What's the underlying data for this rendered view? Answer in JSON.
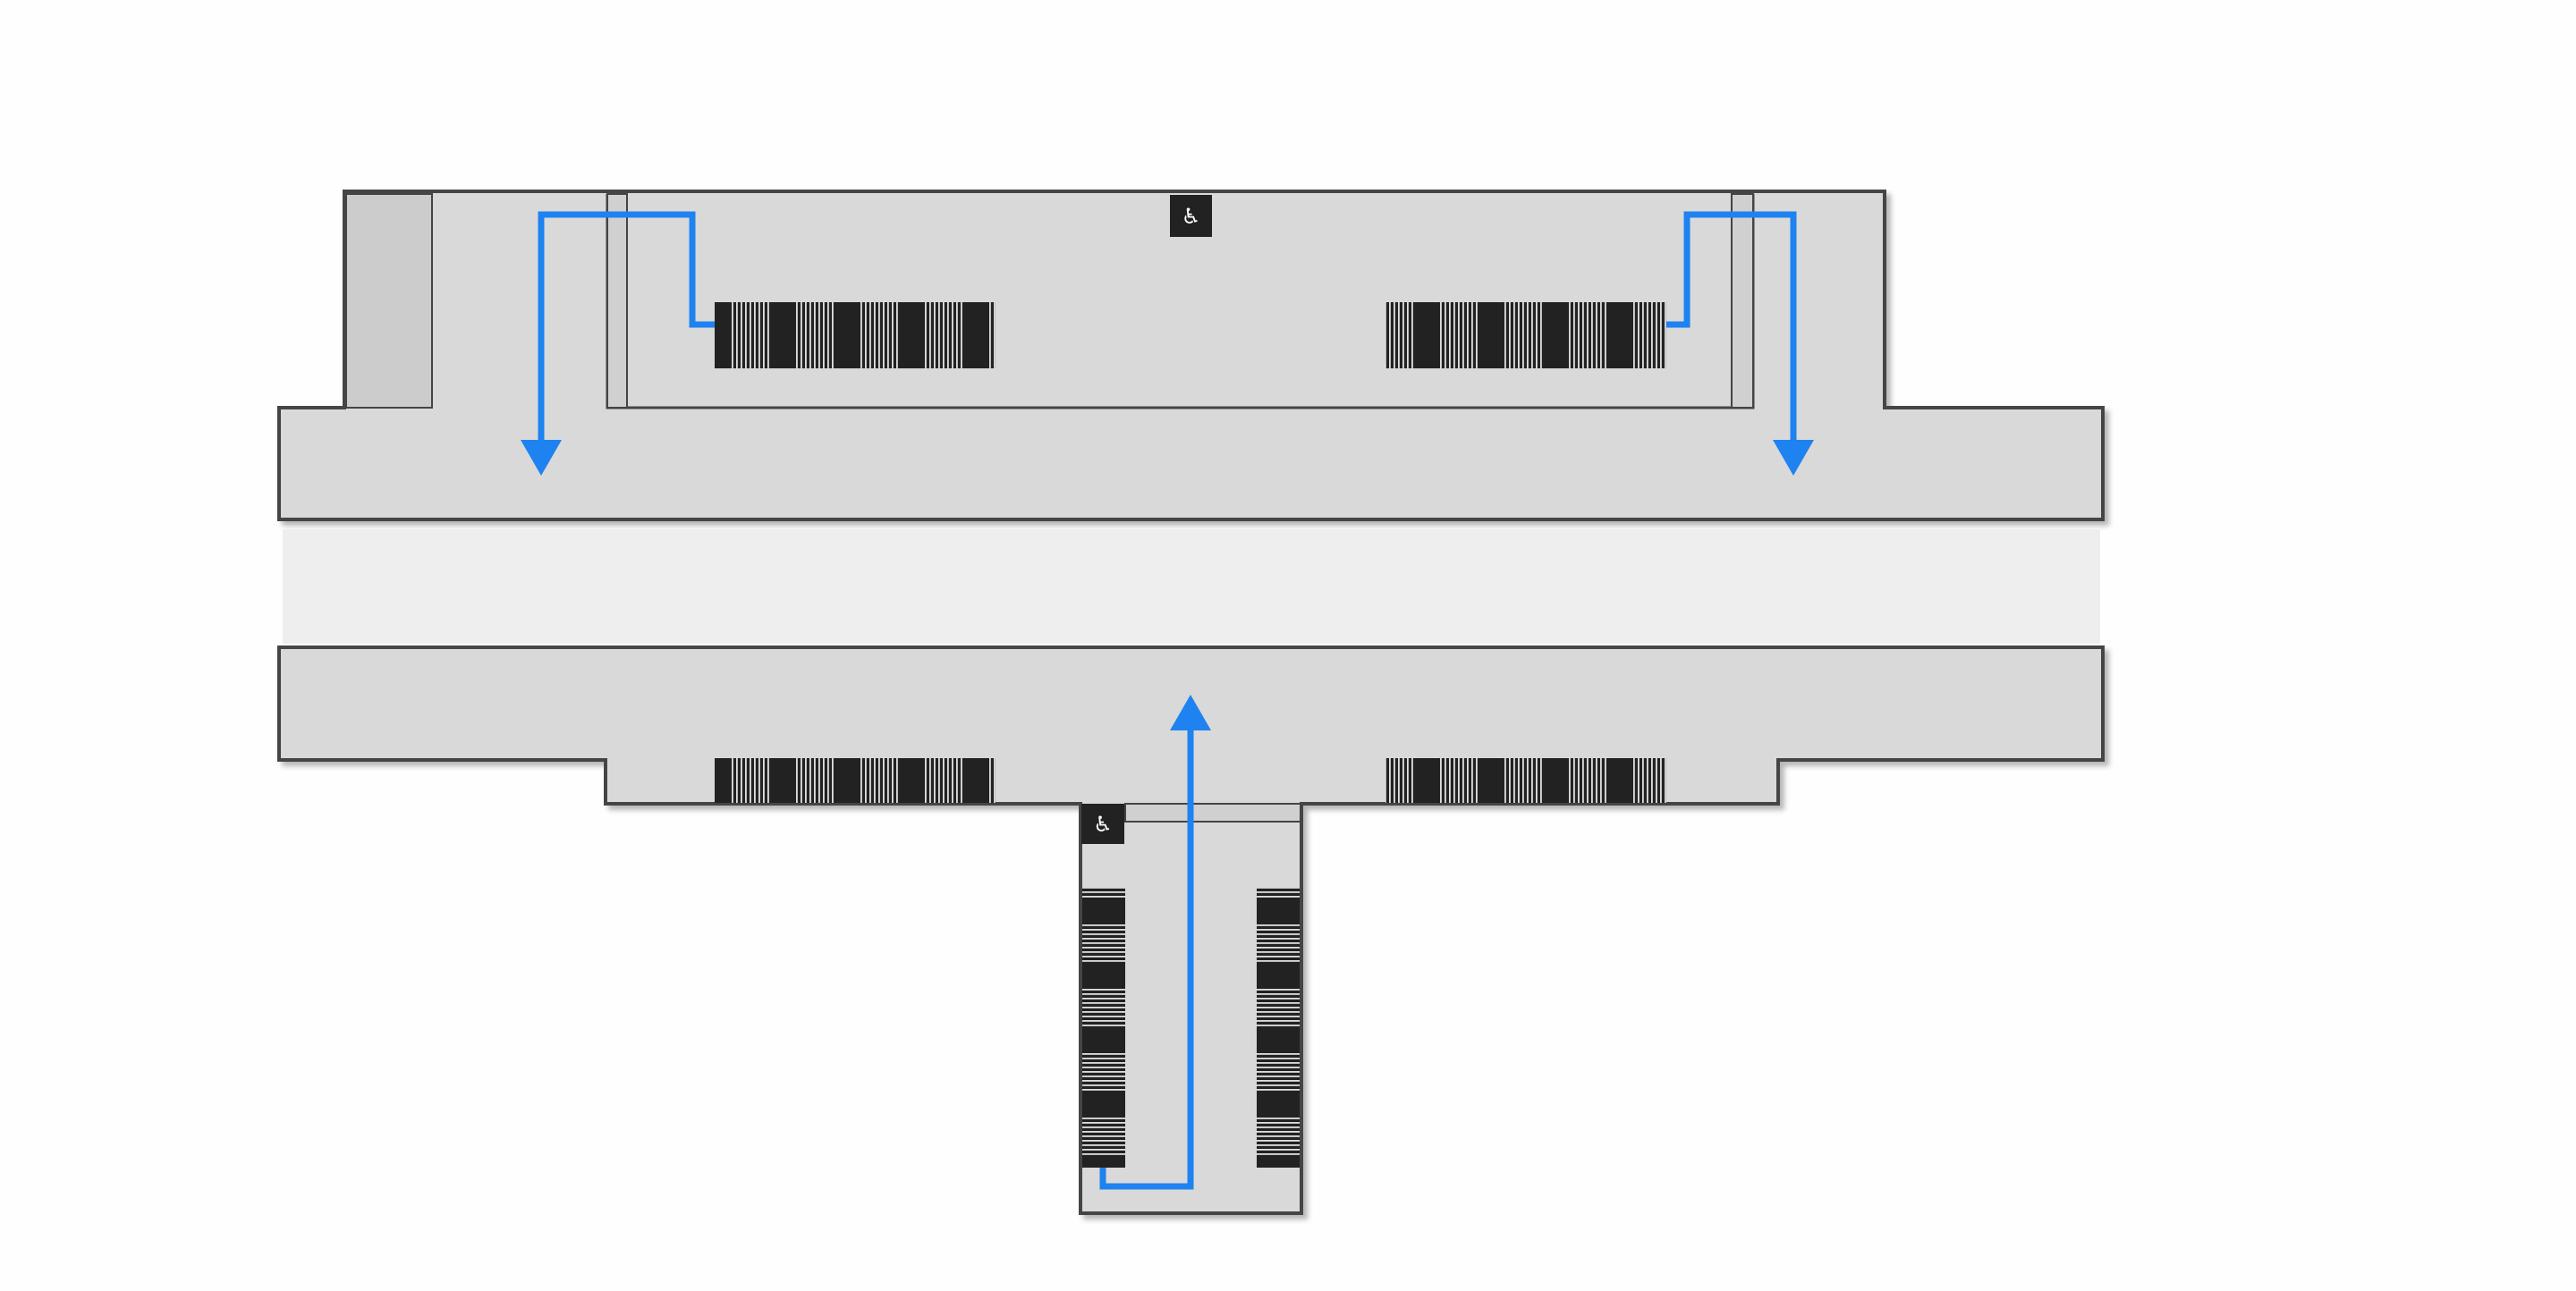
{
  "diagram": {
    "kind": "station-floor-plan",
    "colors": {
      "background": "#fefefe",
      "floor": "#d9d9d9",
      "track": "#eeeeee",
      "outline": "#444444",
      "side_room": "#cccccc",
      "stair_dark": "#222222",
      "stair_light": "#e0e0e0",
      "route": "#1e82f0",
      "icon_bg": "#222222",
      "icon_fg": "#ffffff"
    },
    "icons": {
      "accessible": {
        "name": "wheelchair-icon",
        "glyph": "♿"
      }
    },
    "routes": [
      {
        "id": "route-left-exit",
        "direction": "down"
      },
      {
        "id": "route-right-exit",
        "direction": "down"
      },
      {
        "id": "route-south-entrance",
        "direction": "up"
      }
    ]
  }
}
